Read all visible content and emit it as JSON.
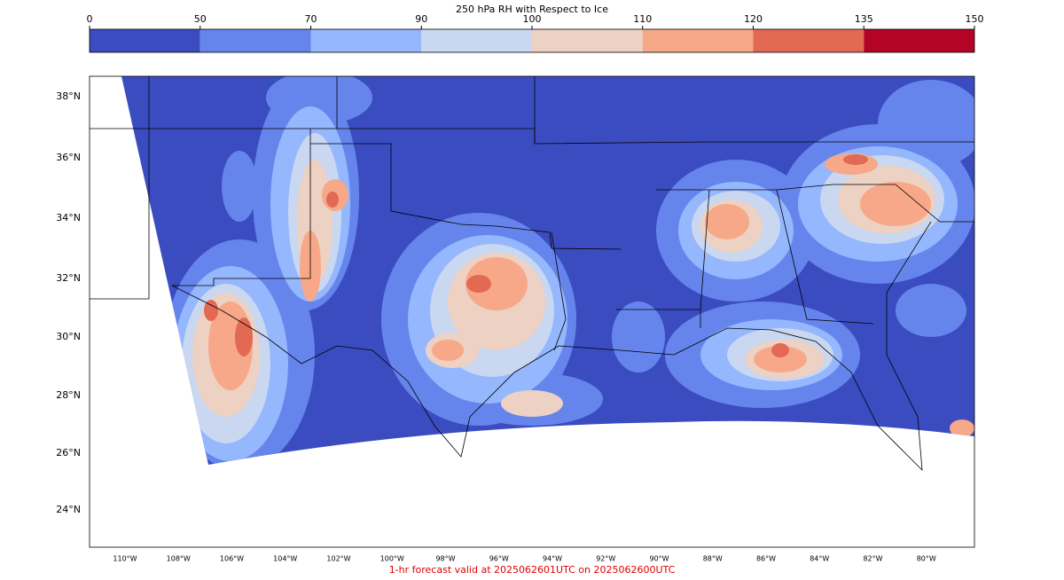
{
  "colorbar": {
    "title": "250 hPa RH with Respect to Ice",
    "ticks": [
      0,
      50,
      70,
      90,
      100,
      110,
      120,
      135,
      150
    ],
    "colors": [
      "#3b4cc0",
      "#6685ec",
      "#95b7fe",
      "#c9d7f0",
      "#edd1c2",
      "#f7a889",
      "#e26952",
      "#b40426"
    ]
  },
  "map": {
    "lat_labels": [
      "38°N",
      "36°N",
      "34°N",
      "32°N",
      "30°N",
      "28°N",
      "26°N",
      "24°N"
    ],
    "lon_labels": [
      "110°W",
      "108°W",
      "106°W",
      "104°W",
      "102°W",
      "100°W",
      "98°W",
      "96°W",
      "94°W",
      "92°W",
      "90°W",
      "88°W",
      "86°W",
      "84°W",
      "82°W",
      "80°W"
    ]
  },
  "footer": "1-hr forecast valid at 2025062601UTC on 2025062600UTC"
}
